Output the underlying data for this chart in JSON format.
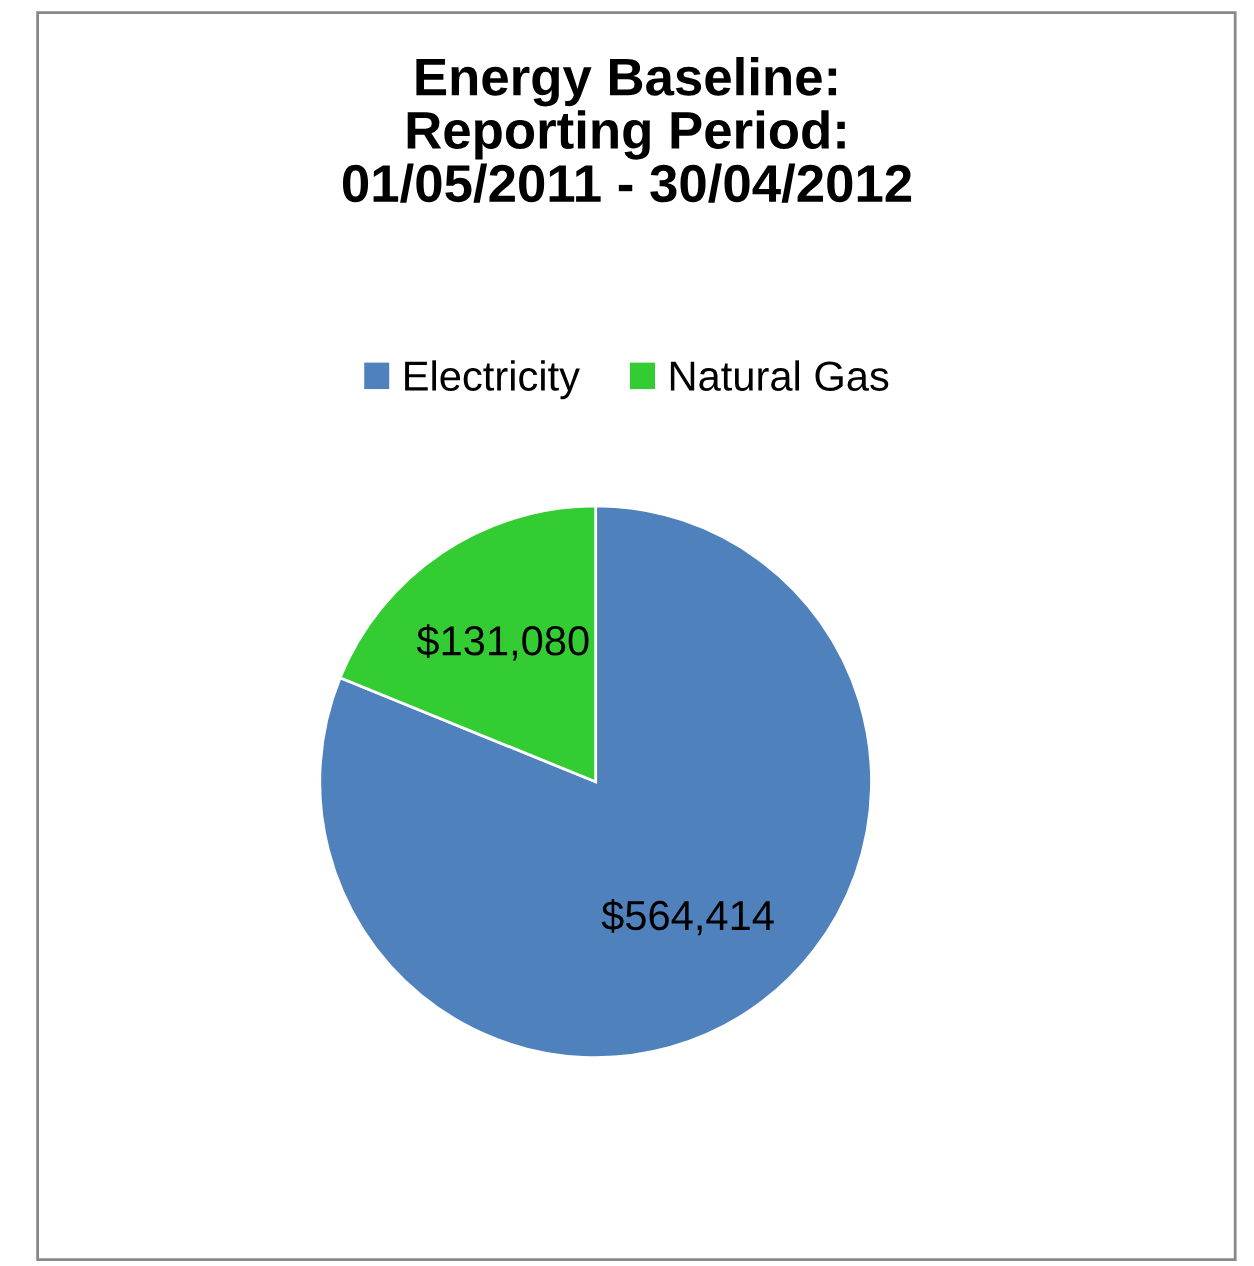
{
  "chart_data": {
    "type": "pie",
    "title": "Energy Baseline:\nReporting Period:\n01/05/2011 - 30/04/2012",
    "categories": [
      "Electricity",
      "Natural Gas"
    ],
    "values": [
      564414,
      131080
    ],
    "value_labels": [
      "$564,414",
      "$131,080"
    ],
    "colors": [
      "#4f81bd",
      "#33cc33"
    ],
    "legend": "top"
  }
}
